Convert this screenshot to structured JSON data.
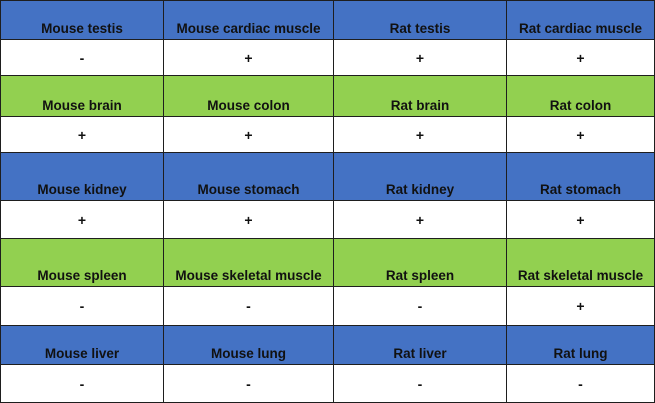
{
  "colors": {
    "header_blue": "#4472C4",
    "header_green": "#92D050",
    "value_bg": "#FFFFFF",
    "border": "#1E1E1E"
  },
  "rows": [
    {
      "type": "header",
      "color": "blue",
      "cells": [
        "Mouse testis",
        "Mouse cardiac muscle",
        "Rat testis",
        "Rat cardiac muscle"
      ]
    },
    {
      "type": "value",
      "cells": [
        "-",
        "+",
        "+",
        "+"
      ]
    },
    {
      "type": "header",
      "color": "green",
      "cells": [
        "Mouse brain",
        "Mouse colon",
        "Rat brain",
        "Rat colon"
      ]
    },
    {
      "type": "value",
      "cells": [
        "+",
        "+",
        "+",
        "+"
      ]
    },
    {
      "type": "header",
      "color": "blue",
      "cells": [
        "Mouse kidney",
        "Mouse stomach",
        "Rat kidney",
        "Rat stomach"
      ]
    },
    {
      "type": "value",
      "cells": [
        "+",
        "+",
        "+",
        "+"
      ]
    },
    {
      "type": "header",
      "color": "green",
      "cells": [
        "Mouse spleen",
        "Mouse skeletal muscle",
        "Rat spleen",
        "Rat skeletal muscle"
      ]
    },
    {
      "type": "value",
      "cells": [
        "-",
        "-",
        "-",
        "+"
      ]
    },
    {
      "type": "header",
      "color": "blue",
      "cells": [
        "Mouse liver",
        "Mouse lung",
        "Rat liver",
        "Rat lung"
      ]
    },
    {
      "type": "value",
      "cells": [
        "-",
        "-",
        "-",
        "-"
      ]
    }
  ]
}
